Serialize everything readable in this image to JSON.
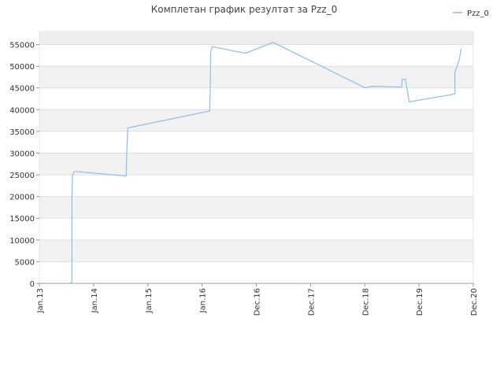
{
  "chart_data": {
    "type": "line",
    "title": "Комплетан график резултат за Pzz_0",
    "x": [
      0.57,
      0.6,
      0.6,
      0.61,
      0.65,
      1.6,
      1.61,
      1.63,
      3.14,
      3.15,
      3.16,
      3.19,
      3.8,
      4.31,
      6.01,
      6.13,
      6.68,
      6.69,
      6.75,
      6.82,
      7.66,
      7.66,
      7.74,
      7.78
    ],
    "series": [
      {
        "name": "Pzz_0",
        "color": "#88bfee",
        "values": [
          0,
          300,
          19400,
          25000,
          25800,
          24700,
          29800,
          35800,
          39700,
          44800,
          53400,
          54500,
          53000,
          55500,
          45000,
          45400,
          45200,
          47000,
          47000,
          41800,
          43600,
          48500,
          51500,
          54100
        ]
      }
    ],
    "xlim": [
      0,
      8
    ],
    "xticks": [
      {
        "value": 0,
        "label": "Jan.13"
      },
      {
        "value": 1,
        "label": "Jan.14"
      },
      {
        "value": 2,
        "label": "Jan.15"
      },
      {
        "value": 3,
        "label": "Jan.16"
      },
      {
        "value": 4,
        "label": "Dec.16"
      },
      {
        "value": 5,
        "label": "Dec.17"
      },
      {
        "value": 6,
        "label": "Dec.18"
      },
      {
        "value": 7,
        "label": "Dec.19"
      },
      {
        "value": 8,
        "label": "Dec.20"
      }
    ],
    "ylim": [
      0,
      58000
    ],
    "yticks": [
      0,
      5000,
      10000,
      15000,
      20000,
      25000,
      30000,
      35000,
      40000,
      45000,
      50000,
      55000
    ],
    "grid": true,
    "legend": "top-right"
  }
}
